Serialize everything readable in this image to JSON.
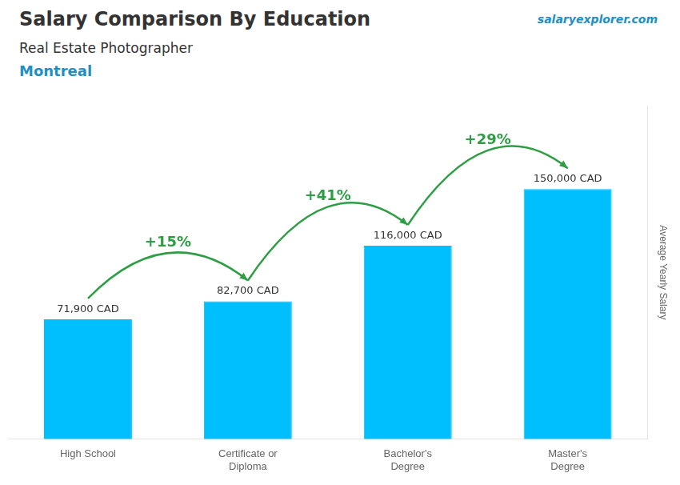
{
  "chart_data": {
    "type": "bar",
    "title": "Salary Comparison By Education",
    "watermark": "salaryexplorer.com",
    "subtitle": "Real Estate Photographer",
    "city": "Montreal",
    "ylabel": "Average Yearly Salary",
    "categories": [
      "High School",
      "Certificate or\nDiploma",
      "Bachelor's\nDegree",
      "Master's\nDegree"
    ],
    "values": [
      71900,
      82700,
      116000,
      150000
    ],
    "value_labels": [
      "71,900 CAD",
      "82,700 CAD",
      "116,000 CAD",
      "150,000 CAD"
    ],
    "data_labels": true,
    "color": "#00BFFF",
    "ylim": [
      0,
      200000
    ],
    "tick_labels": "x",
    "grid": false,
    "annotations": [
      {
        "text": "+15%",
        "from": "High School",
        "to": "Certificate or\nDiploma"
      },
      {
        "text": "+41%",
        "from": "Certificate or\nDiploma",
        "to": "Bachelor's\nDegree"
      },
      {
        "text": "+29%",
        "from": "Bachelor's\nDegree",
        "to": "Master's\nDegree"
      }
    ]
  }
}
